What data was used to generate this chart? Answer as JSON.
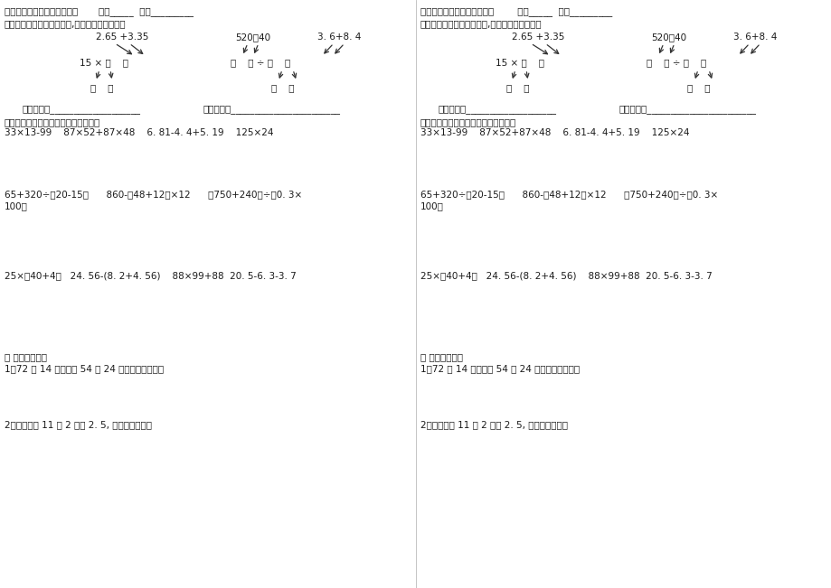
{
  "bg_color": "#ffffff",
  "text_color": "#1a1a1a",
  "title_left": "四年级下册计算题练习第五天       学号_____  姓名_________",
  "title_right": "四年级下册计算题练习第五天        学号_____  姓名_________",
  "sec1": "一、在括号里填上适当的数,然后列出综合算式：",
  "expr1": "2.65 +3.35",
  "expr2": "520－40",
  "expr3": "3. 6+8. 4",
  "left_mid": "15 × （    ）",
  "right_mid": "（    ） ÷ （    ）",
  "left_bot": "（    ）",
  "right_bot": "（    ）",
  "zonghe1": "综合算式：___________________",
  "zonghe2": "综合算式：_______________________",
  "sec3": "三、计算，有些能简便的要简便计算：",
  "row3a": "33×13-99    87×52+87×48    6. 81-4. 4+5. 19    125×24",
  "row4a": "65+320÷（20-15）      860-（48+12）×12      （750+240）÷（0. 3×",
  "row4b": "100）",
  "row5a": "25×（40+4）   24. 56-(8. 2+4. 56)    88×99+88  20. 5-6. 3-3. 7",
  "sec4": "四 、列式计算。",
  "q1": "1、72 与 14 的和乘以 54 与 24 的差，积是多少？",
  "q2": "2、一个数比 11 的 2 倍少 2. 5, 这个数是多少？"
}
